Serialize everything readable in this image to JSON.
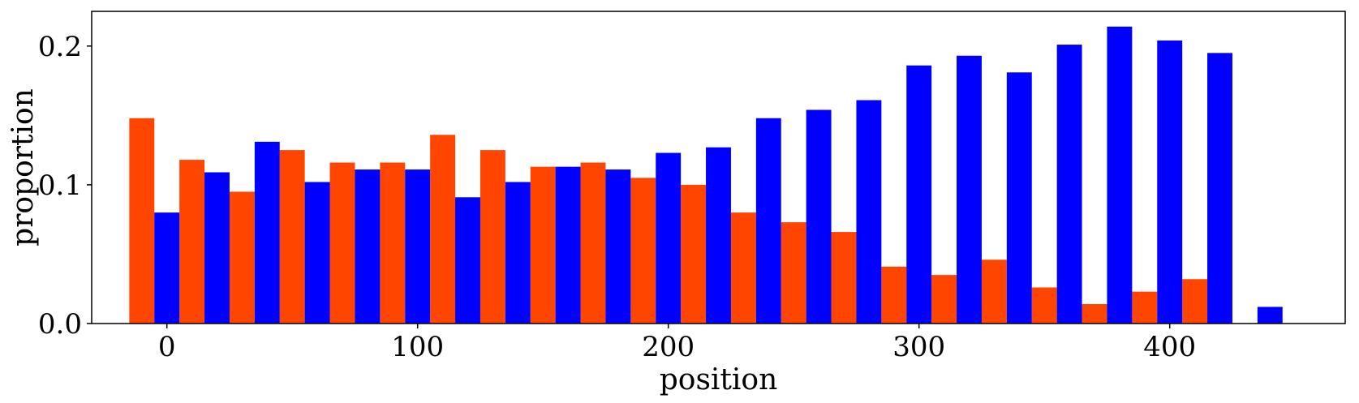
{
  "chart_data": {
    "type": "bar",
    "xlabel": "position",
    "ylabel": "proportion",
    "xlim": [
      -30,
      470
    ],
    "ylim": [
      0,
      0.225
    ],
    "xticks": [
      0,
      100,
      200,
      300,
      400
    ],
    "yticks": [
      0.0,
      0.1,
      0.2
    ],
    "xtick_labels": [
      "0",
      "100",
      "200",
      "300",
      "400"
    ],
    "ytick_labels": [
      "0.0",
      "0.1",
      "0.2"
    ],
    "bin_width": 20,
    "grid": false,
    "series": [
      {
        "color": "#ff4500",
        "x": [
          -10,
          10,
          30,
          50,
          70,
          90,
          110,
          130,
          150,
          170,
          190,
          210,
          230,
          250,
          270,
          290,
          310,
          330,
          350,
          370,
          390,
          410,
          430
        ],
        "values": [
          0.148,
          0.118,
          0.095,
          0.125,
          0.116,
          0.116,
          0.136,
          0.125,
          0.113,
          0.116,
          0.105,
          0.1,
          0.08,
          0.073,
          0.066,
          0.041,
          0.035,
          0.046,
          0.026,
          0.014,
          0.023,
          0.032,
          0.0
        ]
      },
      {
        "color": "#0000ff",
        "x": [
          0,
          20,
          40,
          60,
          80,
          100,
          120,
          140,
          160,
          180,
          200,
          220,
          240,
          260,
          280,
          300,
          320,
          340,
          360,
          380,
          400,
          420,
          440
        ],
        "values": [
          0.08,
          0.109,
          0.131,
          0.102,
          0.111,
          0.111,
          0.091,
          0.102,
          0.113,
          0.111,
          0.123,
          0.127,
          0.148,
          0.154,
          0.161,
          0.186,
          0.193,
          0.181,
          0.201,
          0.214,
          0.204,
          0.195,
          0.012
        ]
      }
    ]
  }
}
